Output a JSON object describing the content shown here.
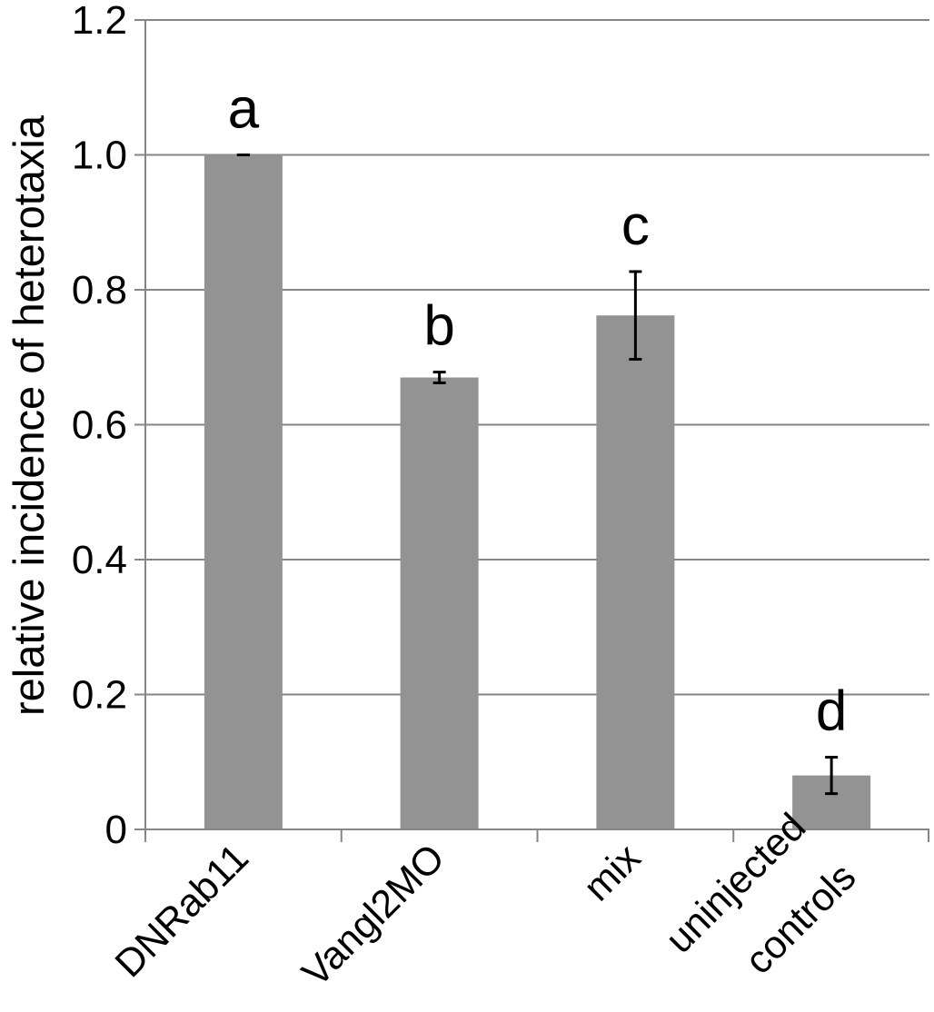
{
  "chart_data": {
    "type": "bar",
    "title": "",
    "xlabel": "",
    "ylabel": "relative incidence of heterotaxia",
    "ylim": [
      0,
      1.2
    ],
    "yticks": [
      0,
      0.2,
      0.4,
      0.6,
      0.8,
      1.0,
      1.2
    ],
    "ytick_labels": [
      "0",
      "0.2",
      "0.4",
      "0.6",
      "0.8",
      "1.0",
      "1.2"
    ],
    "grid": true,
    "categories": [
      {
        "label_lines": [
          "DNRab11"
        ]
      },
      {
        "label_lines": [
          "Vangl2MO"
        ]
      },
      {
        "label_lines": [
          "mix"
        ]
      },
      {
        "label_lines": [
          "uninjected",
          "controls"
        ]
      }
    ],
    "values": [
      1.0,
      0.67,
      0.762,
      0.08
    ],
    "error": [
      0.0,
      0.008,
      0.065,
      0.027
    ],
    "annotations": [
      "a",
      "b",
      "c",
      "d"
    ],
    "colors": {
      "bar": "#939393",
      "grid": "#868686",
      "axis": "#868686",
      "error": "#000000"
    }
  }
}
